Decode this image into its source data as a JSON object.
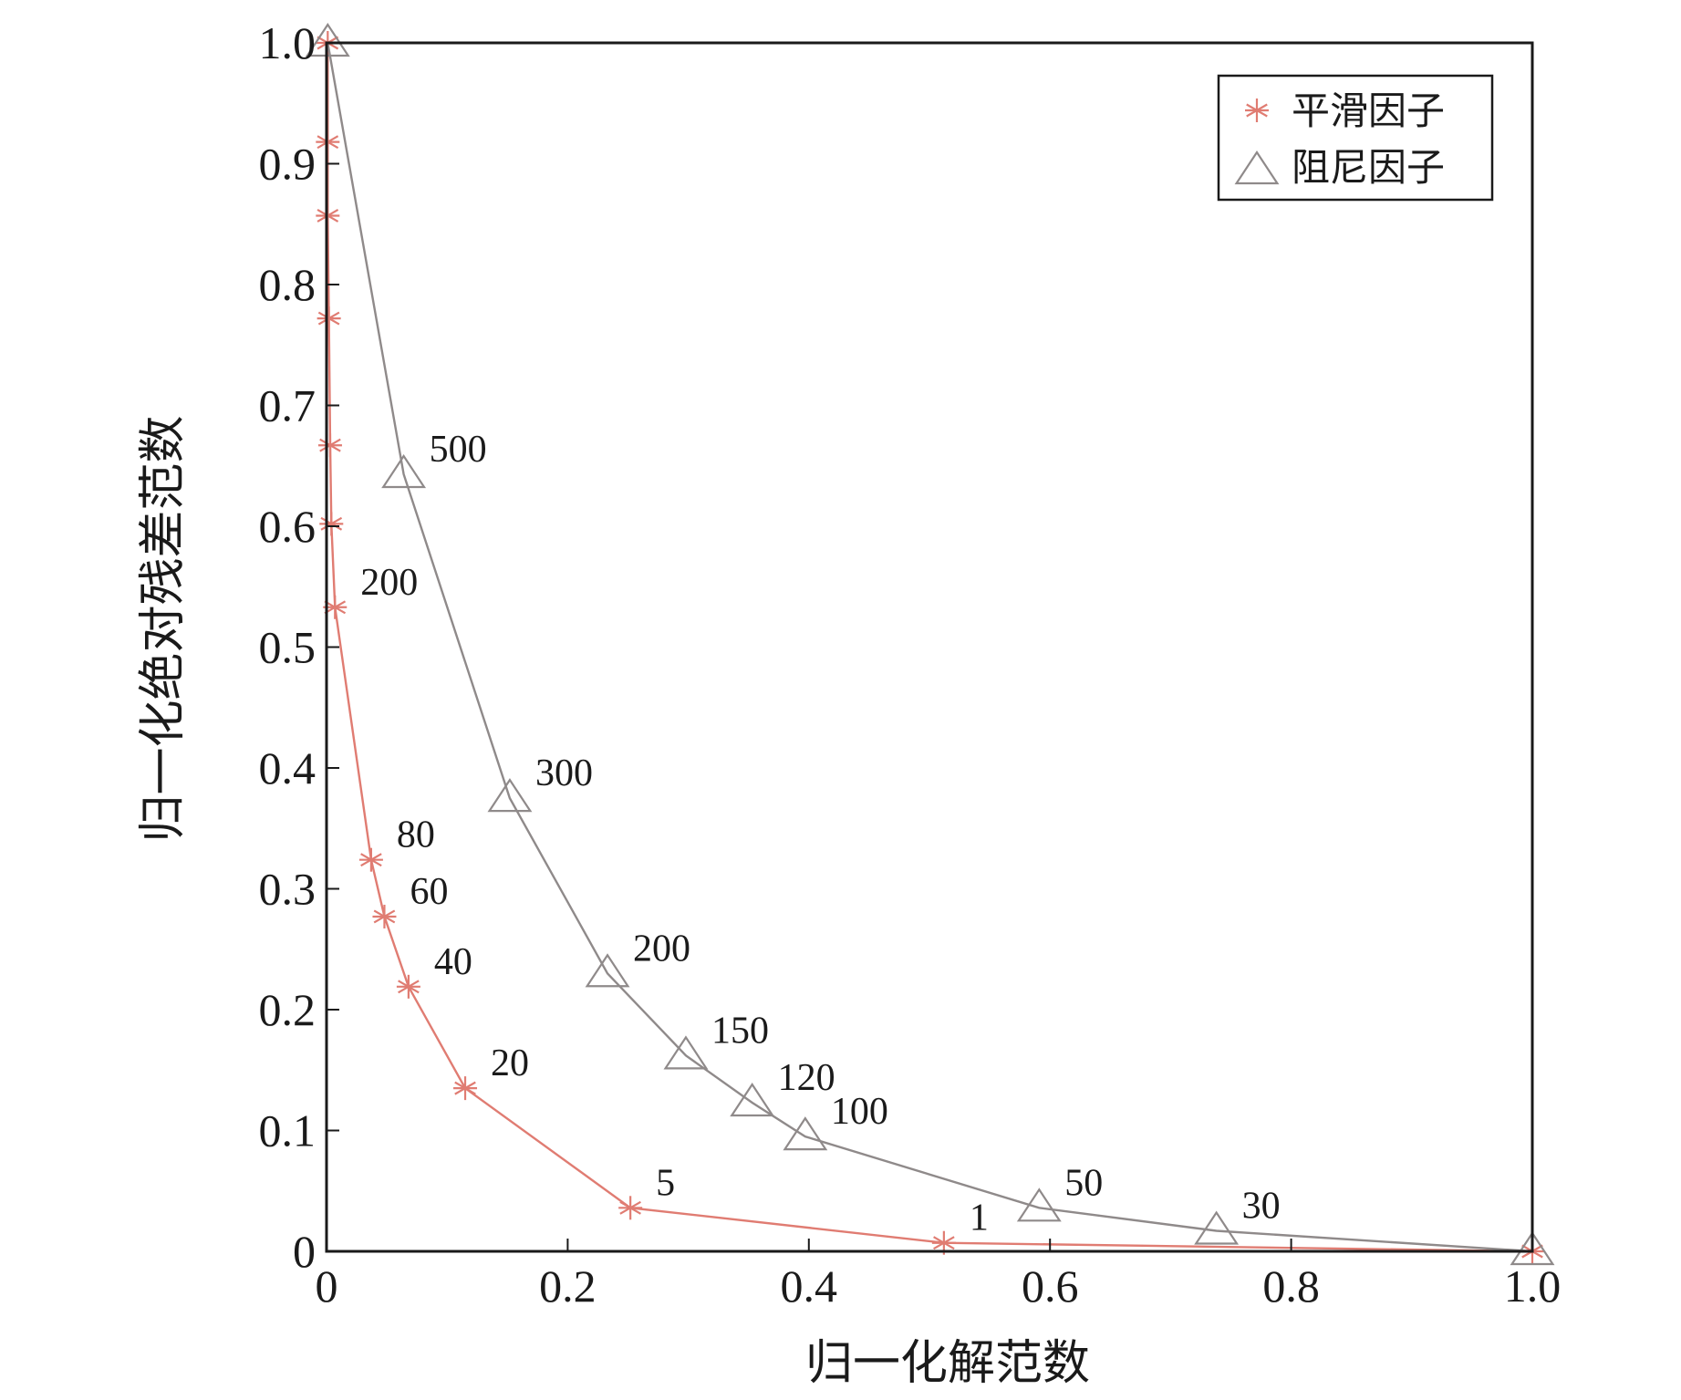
{
  "chart_data": {
    "type": "line",
    "xlabel": "归一化解范数",
    "ylabel": "归一化绝对残差范数",
    "xlim": [
      0,
      1.0
    ],
    "ylim": [
      0,
      1.0
    ],
    "x_ticks": [
      "0",
      "0.2",
      "0.4",
      "0.6",
      "0.8",
      "1.0"
    ],
    "y_ticks": [
      "0",
      "0.1",
      "0.2",
      "0.3",
      "0.4",
      "0.5",
      "0.6",
      "0.7",
      "0.8",
      "0.9",
      "1.0"
    ],
    "legend_position": "top-right",
    "series": [
      {
        "name": "平滑因子",
        "marker": "asterisk",
        "color": "#e07c72",
        "points": [
          {
            "x": 0.001,
            "y": 1.0,
            "label": ""
          },
          {
            "x": 0.001,
            "y": 0.918,
            "label": ""
          },
          {
            "x": 0.001,
            "y": 0.857,
            "label": ""
          },
          {
            "x": 0.002,
            "y": 0.772,
            "label": ""
          },
          {
            "x": 0.003,
            "y": 0.667,
            "label": ""
          },
          {
            "x": 0.004,
            "y": 0.602,
            "label": ""
          },
          {
            "x": 0.007,
            "y": 0.533,
            "label": "200"
          },
          {
            "x": 0.037,
            "y": 0.324,
            "label": "80"
          },
          {
            "x": 0.048,
            "y": 0.277,
            "label": "60"
          },
          {
            "x": 0.068,
            "y": 0.219,
            "label": "40"
          },
          {
            "x": 0.115,
            "y": 0.135,
            "label": "20"
          },
          {
            "x": 0.252,
            "y": 0.036,
            "label": "5"
          },
          {
            "x": 0.512,
            "y": 0.007,
            "label": "1"
          },
          {
            "x": 1.0,
            "y": 0.0,
            "label": ""
          }
        ]
      },
      {
        "name": "阻尼因子",
        "marker": "triangle",
        "color": "#8f8a8a",
        "points": [
          {
            "x": 0.001,
            "y": 1.0,
            "label": ""
          },
          {
            "x": 0.064,
            "y": 0.643,
            "label": "500"
          },
          {
            "x": 0.152,
            "y": 0.375,
            "label": "300"
          },
          {
            "x": 0.233,
            "y": 0.23,
            "label": "200"
          },
          {
            "x": 0.298,
            "y": 0.162,
            "label": "150"
          },
          {
            "x": 0.353,
            "y": 0.123,
            "label": "120"
          },
          {
            "x": 0.397,
            "y": 0.095,
            "label": "100"
          },
          {
            "x": 0.591,
            "y": 0.036,
            "label": "50"
          },
          {
            "x": 0.738,
            "y": 0.017,
            "label": "30"
          },
          {
            "x": 1.0,
            "y": 0.0,
            "label": ""
          }
        ]
      }
    ]
  }
}
